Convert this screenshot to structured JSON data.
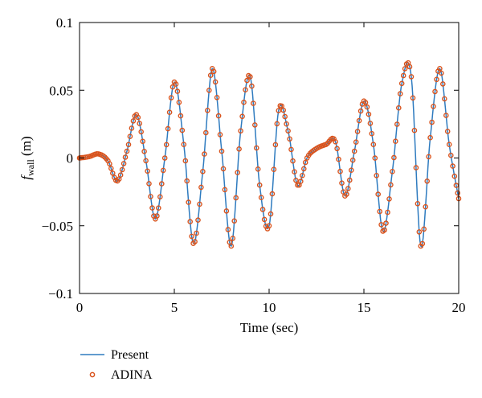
{
  "chart_data": {
    "type": "line",
    "xlabel": "Time (sec)",
    "ylabel_main": "f",
    "ylabel_sub": "wall",
    "ylabel_unit": " (m)",
    "xlim": [
      0,
      20
    ],
    "ylim": [
      -0.1,
      0.1
    ],
    "xticks": [
      0,
      5,
      10,
      15,
      20
    ],
    "xtick_labels": [
      "0",
      "5",
      "10",
      "15",
      "20"
    ],
    "yticks": [
      -0.1,
      -0.05,
      0,
      0.05,
      0.1
    ],
    "ytick_labels": [
      "−0.1",
      "−0.05",
      "0",
      "0.05",
      "0.1"
    ],
    "grid": false,
    "legend_position": "bottom-left below axes",
    "series": [
      {
        "name": "Present",
        "style": "line",
        "color": "#2e7bbf",
        "x": [
          0,
          0.5,
          1.0,
          1.5,
          2.0,
          2.5,
          3.0,
          3.5,
          4.0,
          4.5,
          5.0,
          5.5,
          6.0,
          6.5,
          7.0,
          7.5,
          8.0,
          8.5,
          9.0,
          9.5,
          10.0,
          10.5,
          11.0,
          11.5,
          12.0,
          12.5,
          13.0,
          13.5,
          14.0,
          14.5,
          15.0,
          15.5,
          16.0,
          16.5,
          17.0,
          17.5,
          18.0,
          18.5,
          19.0,
          19.5,
          20.0
        ],
        "y": [
          0.0,
          0.001,
          0.003,
          -0.002,
          -0.017,
          0.005,
          0.032,
          -0.002,
          -0.045,
          0.0,
          0.056,
          0.01,
          -0.063,
          -0.01,
          0.066,
          0.005,
          -0.065,
          0.02,
          0.06,
          -0.02,
          -0.05,
          0.035,
          0.02,
          -0.02,
          0.0,
          0.007,
          0.01,
          0.012,
          -0.028,
          0.005,
          0.042,
          0.01,
          -0.054,
          -0.01,
          0.055,
          0.06,
          -0.065,
          0.015,
          0.066,
          0.01,
          -0.03
        ]
      },
      {
        "name": "ADINA",
        "style": "markers",
        "color": "#d9541e",
        "marker": "open-circle",
        "x": [
          0,
          0.5,
          1.0,
          1.5,
          2.0,
          2.5,
          3.0,
          3.5,
          4.0,
          4.5,
          5.0,
          5.5,
          6.0,
          6.5,
          7.0,
          7.5,
          8.0,
          8.5,
          9.0,
          9.5,
          10.0,
          10.5,
          11.0,
          11.5,
          12.0,
          12.5,
          13.0,
          13.5,
          14.0,
          14.5,
          15.0,
          15.5,
          16.0,
          16.5,
          17.0,
          17.5,
          18.0,
          18.5,
          19.0,
          19.5,
          20.0
        ],
        "y": [
          0.0,
          0.001,
          0.003,
          -0.002,
          -0.017,
          0.005,
          0.032,
          -0.002,
          -0.045,
          0.0,
          0.056,
          0.01,
          -0.063,
          -0.01,
          0.066,
          0.005,
          -0.065,
          0.02,
          0.06,
          -0.02,
          -0.05,
          0.035,
          0.02,
          -0.02,
          0.0,
          0.007,
          0.01,
          0.012,
          -0.028,
          0.005,
          0.042,
          0.01,
          -0.054,
          -0.01,
          0.055,
          0.06,
          -0.065,
          0.015,
          0.066,
          0.01,
          -0.03
        ]
      }
    ]
  }
}
